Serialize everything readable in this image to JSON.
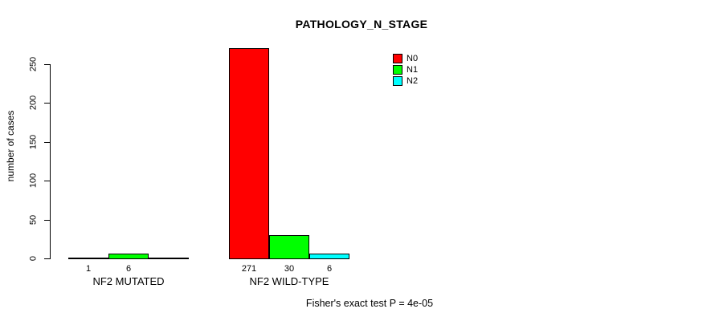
{
  "chart_data": {
    "type": "bar",
    "title": "PATHOLOGY_N_STAGE",
    "xlabel": "",
    "ylabel": "number of cases",
    "ylim": [
      0,
      250
    ],
    "yticks": [
      0,
      50,
      100,
      150,
      200,
      250
    ],
    "grid": false,
    "legend_position": "top-right",
    "categories": [
      "NF2 MUTATED",
      "NF2 WILD-TYPE"
    ],
    "series": [
      {
        "name": "N0",
        "color": "#ff0000",
        "values": [
          1,
          271
        ]
      },
      {
        "name": "N1",
        "color": "#00ff00",
        "values": [
          6,
          30
        ]
      },
      {
        "name": "N2",
        "color": "#00ffff",
        "values": [
          0,
          6
        ]
      }
    ],
    "bar_value_labels": {
      "NF2 MUTATED": [
        1,
        6,
        null
      ],
      "NF2 WILD-TYPE": [
        271,
        30,
        6
      ]
    }
  },
  "footer_note": "Fisher's exact test P = 4e-05",
  "colors": {
    "background": "#ffffff",
    "axis": "#000000",
    "text": "#000000",
    "n0": "#ff0000",
    "n1": "#00ff00",
    "n2": "#00ffff"
  }
}
